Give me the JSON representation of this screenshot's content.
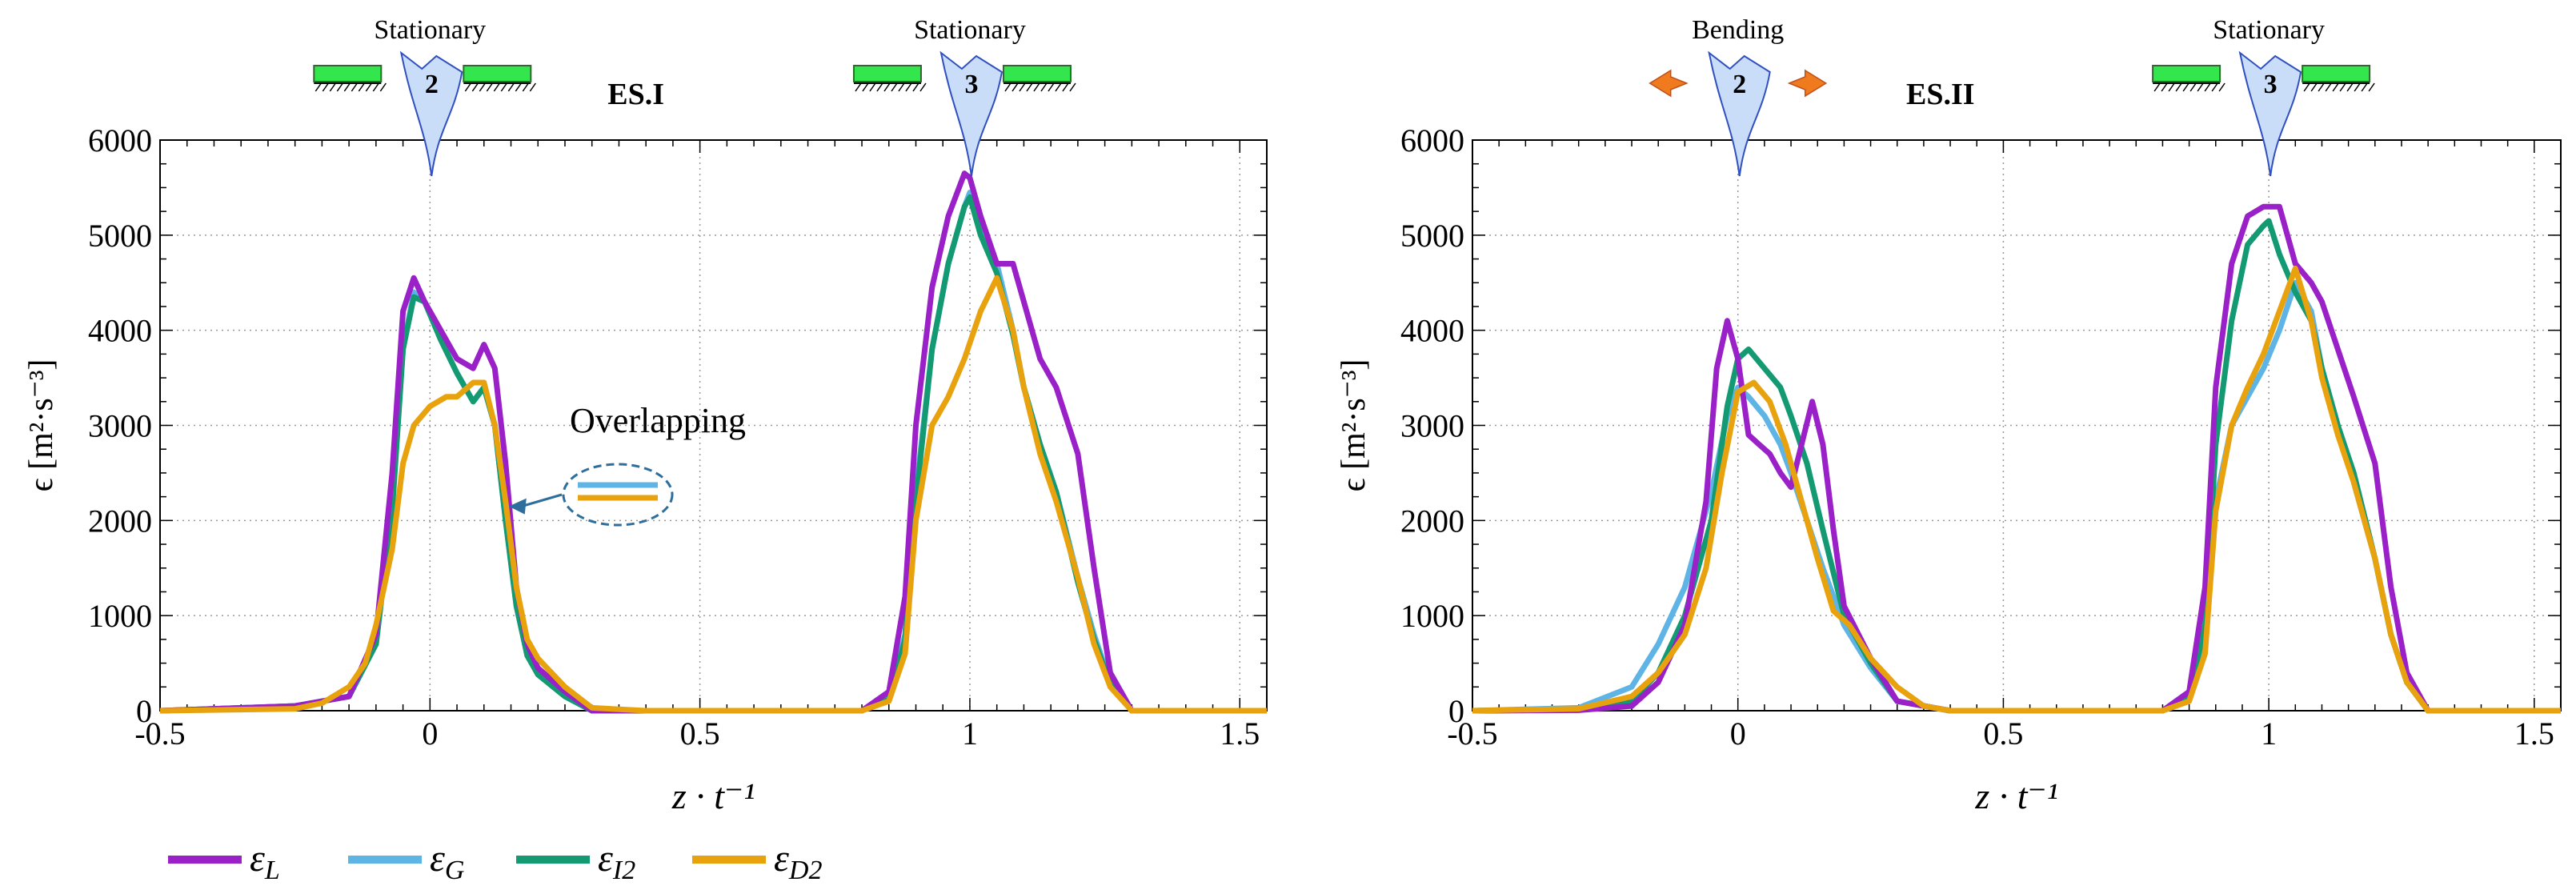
{
  "colors": {
    "eps_L": "#9a20c8",
    "eps_G": "#5fb4e6",
    "eps_I2": "#139a72",
    "eps_D2": "#e8a20e",
    "stationary_bar": "#33e64d",
    "blade": "#c9dcf8",
    "arrow": "#f07a1e",
    "overlap_marker": "#2e6e9c"
  },
  "legend": [
    {
      "key": "eps_L",
      "base": "ε",
      "sub": "L"
    },
    {
      "key": "eps_G",
      "base": "ε",
      "sub": "G"
    },
    {
      "key": "eps_I2",
      "base": "ε",
      "sub": "I2"
    },
    {
      "key": "eps_D2",
      "base": "ε",
      "sub": "D2"
    }
  ],
  "chart_data": [
    {
      "type": "line",
      "title": "ES.I",
      "xlabel": "z · t⁻¹",
      "ylabel": "ϵ [m²·s⁻³]",
      "xlim": [
        -0.5,
        1.55
      ],
      "ylim": [
        0,
        6000
      ],
      "xticks": [
        -0.5,
        0,
        0.5,
        1,
        1.5
      ],
      "xtick_labels": [
        "-0.5",
        "0",
        "0.5",
        "1",
        "1.5"
      ],
      "yticks": [
        0,
        1000,
        2000,
        3000,
        4000,
        5000,
        6000
      ],
      "ytick_labels": [
        "0",
        "1000",
        "2000",
        "3000",
        "4000",
        "5000",
        "6000"
      ],
      "grid": true,
      "markers": [
        {
          "label": "Stationary",
          "number": "2",
          "x": 0,
          "mode": "stationary"
        },
        {
          "label": "Stationary",
          "number": "3",
          "x": 1,
          "mode": "stationary"
        }
      ],
      "annotation": {
        "text": "Overlapping",
        "x": 0.14,
        "y": 2250
      },
      "series": [
        {
          "name": "eps_G",
          "x": [
            -0.5,
            -0.25,
            -0.15,
            -0.1,
            -0.07,
            -0.05,
            -0.03,
            -0.01,
            0.02,
            0.05,
            0.08,
            0.1,
            0.12,
            0.14,
            0.16,
            0.18,
            0.2,
            0.25,
            0.3,
            0.4,
            0.8,
            0.85,
            0.88,
            0.9,
            0.93,
            0.96,
            0.99,
            1.0,
            1.02,
            1.05,
            1.08,
            1.1,
            1.13,
            1.16,
            1.2,
            1.23,
            1.26,
            1.3,
            1.55
          ],
          "y": [
            0,
            50,
            150,
            700,
            2200,
            3800,
            4400,
            4300,
            3900,
            3550,
            3250,
            3400,
            3000,
            2000,
            1100,
            600,
            380,
            150,
            0,
            0,
            0,
            150,
            800,
            2300,
            3800,
            4700,
            5300,
            5450,
            5100,
            4700,
            4000,
            3400,
            2800,
            2300,
            1400,
            800,
            300,
            0,
            0
          ]
        },
        {
          "name": "eps_I2",
          "x": [
            -0.5,
            -0.25,
            -0.15,
            -0.1,
            -0.07,
            -0.05,
            -0.03,
            -0.01,
            0.02,
            0.05,
            0.08,
            0.1,
            0.12,
            0.14,
            0.16,
            0.18,
            0.2,
            0.25,
            0.3,
            0.4,
            0.8,
            0.85,
            0.88,
            0.9,
            0.93,
            0.96,
            0.99,
            1.0,
            1.02,
            1.05,
            1.08,
            1.1,
            1.13,
            1.16,
            1.2,
            1.23,
            1.26,
            1.3,
            1.55
          ],
          "y": [
            0,
            50,
            150,
            700,
            2100,
            3800,
            4350,
            4300,
            3900,
            3550,
            3250,
            3400,
            3000,
            2000,
            1100,
            580,
            380,
            150,
            0,
            0,
            0,
            120,
            750,
            2200,
            3800,
            4700,
            5300,
            5400,
            5000,
            4600,
            3950,
            3400,
            2800,
            2300,
            1350,
            750,
            280,
            0,
            0
          ]
        },
        {
          "name": "eps_L",
          "x": [
            -0.5,
            -0.25,
            -0.15,
            -0.1,
            -0.07,
            -0.05,
            -0.03,
            -0.01,
            0.02,
            0.05,
            0.08,
            0.1,
            0.12,
            0.14,
            0.16,
            0.18,
            0.2,
            0.25,
            0.3,
            0.4,
            0.8,
            0.85,
            0.88,
            0.9,
            0.93,
            0.96,
            0.99,
            1.0,
            1.02,
            1.05,
            1.08,
            1.1,
            1.13,
            1.16,
            1.2,
            1.23,
            1.26,
            1.3,
            1.55
          ],
          "y": [
            0,
            50,
            150,
            800,
            2500,
            4200,
            4550,
            4300,
            4000,
            3700,
            3600,
            3850,
            3600,
            2600,
            1300,
            700,
            450,
            200,
            0,
            0,
            0,
            200,
            1200,
            3000,
            4450,
            5200,
            5650,
            5600,
            5200,
            4700,
            4700,
            4300,
            3700,
            3400,
            2700,
            1500,
            400,
            0,
            0
          ]
        },
        {
          "name": "eps_D2",
          "x": [
            -0.5,
            -0.25,
            -0.2,
            -0.15,
            -0.12,
            -0.1,
            -0.07,
            -0.05,
            -0.03,
            0,
            0.03,
            0.05,
            0.08,
            0.1,
            0.12,
            0.14,
            0.16,
            0.18,
            0.2,
            0.25,
            0.3,
            0.4,
            0.8,
            0.85,
            0.88,
            0.9,
            0.93,
            0.96,
            0.99,
            1.02,
            1.05,
            1.08,
            1.1,
            1.13,
            1.16,
            1.2,
            1.23,
            1.26,
            1.3,
            1.55
          ],
          "y": [
            0,
            20,
            80,
            250,
            500,
            900,
            1700,
            2600,
            3000,
            3200,
            3300,
            3300,
            3450,
            3450,
            3000,
            2200,
            1300,
            750,
            550,
            250,
            30,
            0,
            0,
            100,
            600,
            2000,
            3000,
            3300,
            3700,
            4200,
            4550,
            4000,
            3400,
            2700,
            2200,
            1400,
            700,
            250,
            0,
            0
          ]
        }
      ]
    },
    {
      "type": "line",
      "title": "ES.II",
      "xlabel": "z · t⁻¹",
      "ylabel": "ϵ [m²·s⁻³]",
      "xlim": [
        -0.5,
        1.55
      ],
      "ylim": [
        0,
        6000
      ],
      "xticks": [
        -0.5,
        0,
        0.5,
        1,
        1.5
      ],
      "xtick_labels": [
        "-0.5",
        "0",
        "0.5",
        "1",
        "1.5"
      ],
      "yticks": [
        0,
        1000,
        2000,
        3000,
        4000,
        5000,
        6000
      ],
      "ytick_labels": [
        "0",
        "1000",
        "2000",
        "3000",
        "4000",
        "5000",
        "6000"
      ],
      "grid": true,
      "markers": [
        {
          "label": "Bending",
          "number": "2",
          "x": 0,
          "mode": "bending"
        },
        {
          "label": "Stationary",
          "number": "3",
          "x": 1,
          "mode": "stationary"
        }
      ],
      "series": [
        {
          "name": "eps_G",
          "x": [
            -0.5,
            -0.3,
            -0.2,
            -0.15,
            -0.1,
            -0.05,
            -0.02,
            0,
            0.02,
            0.05,
            0.08,
            0.1,
            0.13,
            0.16,
            0.2,
            0.25,
            0.3,
            0.4,
            0.8,
            0.85,
            0.88,
            0.9,
            0.93,
            0.96,
            0.99,
            1.02,
            1.05,
            1.08,
            1.1,
            1.13,
            1.16,
            1.2,
            1.23,
            1.26,
            1.3,
            1.55
          ],
          "y": [
            0,
            30,
            250,
            700,
            1300,
            2300,
            3100,
            3400,
            3300,
            3100,
            2800,
            2500,
            2000,
            1500,
            900,
            450,
            100,
            0,
            0,
            100,
            700,
            2200,
            3000,
            3300,
            3600,
            4000,
            4500,
            4200,
            3600,
            3000,
            2400,
            1600,
            800,
            300,
            0,
            0
          ]
        },
        {
          "name": "eps_I2",
          "x": [
            -0.5,
            -0.3,
            -0.2,
            -0.15,
            -0.1,
            -0.05,
            -0.02,
            0,
            0.02,
            0.05,
            0.08,
            0.1,
            0.13,
            0.16,
            0.2,
            0.25,
            0.3,
            0.4,
            0.8,
            0.85,
            0.88,
            0.9,
            0.93,
            0.96,
            0.99,
            1.0,
            1.02,
            1.05,
            1.08,
            1.1,
            1.13,
            1.16,
            1.2,
            1.23,
            1.26,
            1.3,
            1.55
          ],
          "y": [
            0,
            10,
            100,
            400,
            1000,
            2000,
            3200,
            3700,
            3800,
            3600,
            3400,
            3100,
            2600,
            1900,
            1000,
            500,
            100,
            0,
            0,
            150,
            900,
            2800,
            4100,
            4900,
            5100,
            5150,
            4800,
            4400,
            4100,
            3600,
            3000,
            2500,
            1600,
            800,
            300,
            0,
            0
          ]
        },
        {
          "name": "eps_L",
          "x": [
            -0.5,
            -0.3,
            -0.2,
            -0.15,
            -0.1,
            -0.06,
            -0.04,
            -0.02,
            0,
            0.02,
            0.04,
            0.06,
            0.08,
            0.1,
            0.12,
            0.14,
            0.16,
            0.18,
            0.2,
            0.25,
            0.3,
            0.4,
            0.8,
            0.85,
            0.88,
            0.9,
            0.93,
            0.96,
            0.99,
            1.02,
            1.05,
            1.08,
            1.1,
            1.13,
            1.16,
            1.2,
            1.23,
            1.26,
            1.3,
            1.55
          ],
          "y": [
            0,
            5,
            50,
            300,
            900,
            2200,
            3600,
            4100,
            3700,
            2900,
            2800,
            2700,
            2500,
            2350,
            2800,
            3250,
            2800,
            1900,
            1100,
            550,
            100,
            0,
            0,
            200,
            1300,
            3400,
            4700,
            5200,
            5300,
            5300,
            4700,
            4500,
            4300,
            3800,
            3300,
            2600,
            1300,
            400,
            0,
            0
          ]
        },
        {
          "name": "eps_D2",
          "x": [
            -0.5,
            -0.3,
            -0.2,
            -0.15,
            -0.1,
            -0.06,
            -0.03,
            0,
            0.03,
            0.06,
            0.09,
            0.12,
            0.15,
            0.18,
            0.21,
            0.25,
            0.3,
            0.35,
            0.4,
            0.8,
            0.85,
            0.88,
            0.9,
            0.93,
            0.96,
            0.99,
            1.02,
            1.05,
            1.08,
            1.1,
            1.13,
            1.16,
            1.2,
            1.23,
            1.26,
            1.3,
            1.55
          ],
          "y": [
            0,
            20,
            150,
            400,
            800,
            1500,
            2500,
            3350,
            3450,
            3250,
            2800,
            2200,
            1600,
            1050,
            900,
            550,
            250,
            50,
            0,
            0,
            100,
            600,
            2100,
            3000,
            3400,
            3750,
            4200,
            4650,
            4100,
            3500,
            2900,
            2400,
            1600,
            800,
            300,
            0,
            0
          ]
        }
      ]
    }
  ]
}
